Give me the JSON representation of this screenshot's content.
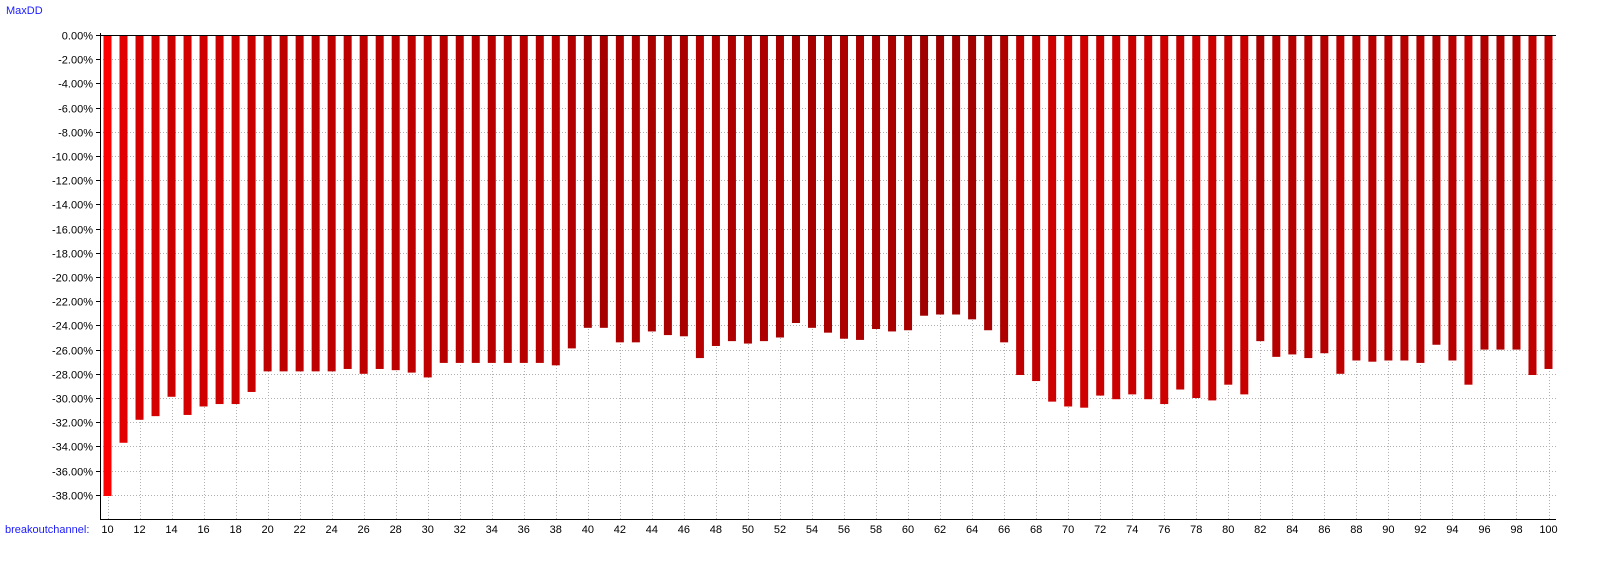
{
  "chart_data": {
    "type": "bar",
    "ylabel": "MaxDD",
    "xlabel": "breakoutchannel:",
    "ylim": [
      -40,
      0
    ],
    "ytick_step": 2,
    "grid": true,
    "categories": [
      10,
      11,
      12,
      13,
      14,
      15,
      16,
      17,
      18,
      19,
      20,
      21,
      22,
      23,
      24,
      25,
      26,
      27,
      28,
      29,
      30,
      31,
      32,
      33,
      34,
      35,
      36,
      37,
      38,
      39,
      40,
      41,
      42,
      43,
      44,
      45,
      46,
      47,
      48,
      49,
      50,
      51,
      52,
      53,
      54,
      55,
      56,
      57,
      58,
      59,
      60,
      61,
      62,
      63,
      64,
      65,
      66,
      67,
      68,
      69,
      70,
      71,
      72,
      73,
      74,
      75,
      76,
      77,
      78,
      79,
      80,
      81,
      82,
      83,
      84,
      85,
      86,
      87,
      88,
      89,
      90,
      91,
      92,
      93,
      94,
      95,
      96,
      97,
      98,
      99,
      100
    ],
    "xtick_labels": [
      "10",
      "12",
      "14",
      "16",
      "18",
      "20",
      "22",
      "24",
      "26",
      "28",
      "30",
      "32",
      "34",
      "36",
      "38",
      "40",
      "42",
      "44",
      "46",
      "48",
      "50",
      "52",
      "54",
      "56",
      "58",
      "60",
      "62",
      "64",
      "66",
      "68",
      "70",
      "72",
      "74",
      "76",
      "78",
      "80",
      "82",
      "84",
      "86",
      "88",
      "90",
      "92",
      "94",
      "96",
      "98",
      "100"
    ],
    "values": [
      -38.1,
      -33.7,
      -31.8,
      -31.5,
      -29.9,
      -31.4,
      -30.7,
      -30.5,
      -30.5,
      -29.5,
      -27.8,
      -27.8,
      -27.8,
      -27.8,
      -27.8,
      -27.6,
      -28.0,
      -27.6,
      -27.7,
      -27.9,
      -28.3,
      -27.1,
      -27.1,
      -27.1,
      -27.1,
      -27.1,
      -27.1,
      -27.1,
      -27.3,
      -25.9,
      -24.2,
      -24.2,
      -25.4,
      -25.4,
      -24.5,
      -24.8,
      -24.9,
      -26.7,
      -25.7,
      -25.3,
      -25.5,
      -25.3,
      -25.0,
      -23.8,
      -24.2,
      -24.6,
      -25.1,
      -25.2,
      -24.3,
      -24.5,
      -24.4,
      -23.2,
      -23.1,
      -23.1,
      -23.5,
      -24.4,
      -25.4,
      -28.1,
      -28.6,
      -30.3,
      -30.7,
      -30.8,
      -29.8,
      -30.1,
      -29.7,
      -30.1,
      -30.5,
      -29.3,
      -30.0,
      -30.2,
      -28.9,
      -29.7,
      -25.3,
      -26.6,
      -26.4,
      -26.7,
      -26.3,
      -28.0,
      -26.9,
      -27.0,
      -26.9,
      -26.9,
      -27.1,
      -25.6,
      -26.9,
      -28.9,
      -26.0,
      -26.0,
      -26.0,
      -28.1,
      -27.6
    ],
    "colors": {
      "bar_deep": "#ff0000",
      "bar_shallow": "#a00000",
      "axis": "#000000",
      "grid": "#b0b0b0",
      "label": "#1a1aff"
    }
  }
}
